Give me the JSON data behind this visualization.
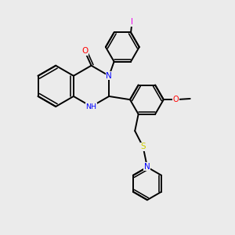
{
  "bg": "#ebebeb",
  "bc": "#000000",
  "nc": "#0000ff",
  "oc": "#ff0000",
  "sc": "#cccc00",
  "ic": "#ee00ee",
  "figsize": [
    3.0,
    3.0
  ],
  "dpi": 100,
  "xlim": [
    0,
    10
  ],
  "ylim": [
    0,
    10
  ]
}
